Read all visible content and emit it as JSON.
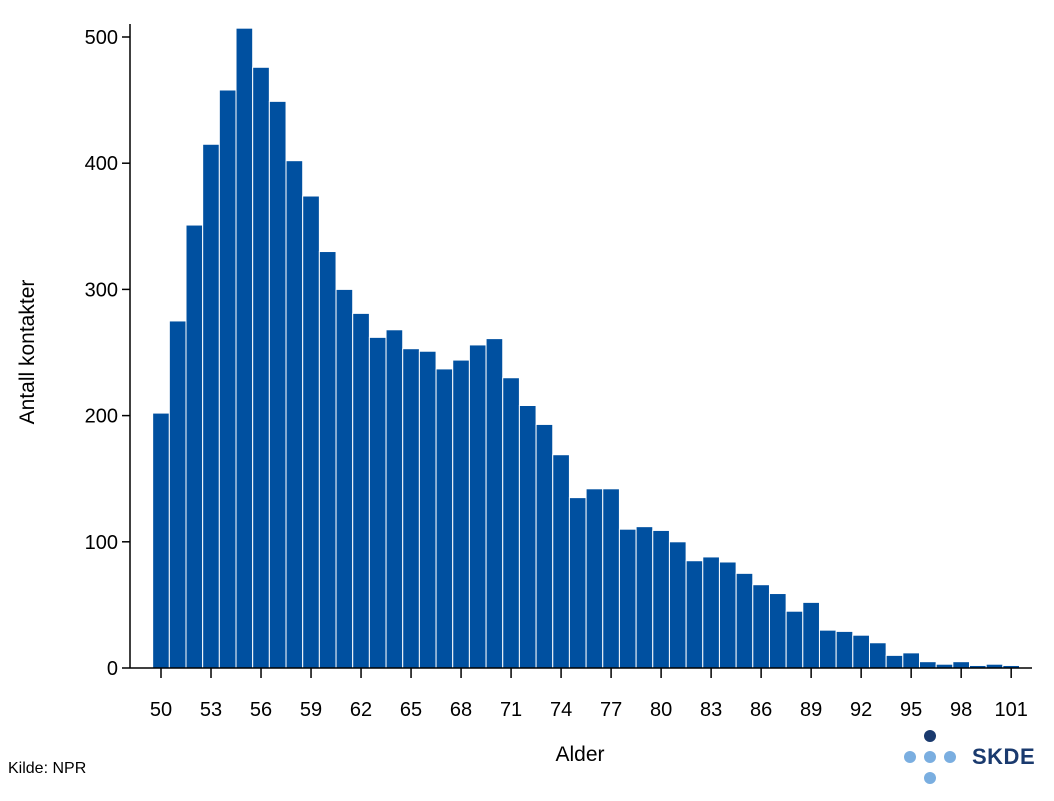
{
  "chart_data": {
    "type": "bar",
    "title": "",
    "xlabel": "Alder",
    "ylabel": "Antall kontakter",
    "ylim": [
      0,
      500
    ],
    "yticks": [
      0,
      100,
      200,
      300,
      400,
      500
    ],
    "xticks": [
      50,
      53,
      56,
      59,
      62,
      65,
      68,
      71,
      74,
      77,
      80,
      83,
      86,
      89,
      92,
      95,
      98,
      101
    ],
    "grid": false,
    "bar_color": "#0050A0",
    "x": [
      50,
      51,
      52,
      53,
      54,
      55,
      56,
      57,
      58,
      59,
      60,
      61,
      62,
      63,
      64,
      65,
      66,
      67,
      68,
      69,
      70,
      71,
      72,
      73,
      74,
      75,
      76,
      77,
      78,
      79,
      80,
      81,
      82,
      83,
      84,
      85,
      86,
      87,
      88,
      89,
      90,
      91,
      92,
      93,
      94,
      95,
      96,
      97,
      98,
      99,
      100,
      101
    ],
    "values": [
      202,
      275,
      351,
      415,
      458,
      507,
      476,
      449,
      402,
      374,
      330,
      300,
      281,
      262,
      268,
      253,
      251,
      237,
      244,
      256,
      261,
      230,
      208,
      193,
      169,
      135,
      142,
      142,
      110,
      112,
      109,
      100,
      85,
      88,
      84,
      75,
      66,
      59,
      45,
      52,
      30,
      29,
      26,
      20,
      10,
      12,
      5,
      3,
      5,
      2,
      3,
      2
    ]
  },
  "source_label": "Kilde: NPR",
  "logo": {
    "text": "SKDE",
    "text_color": "#1a3a6e",
    "dot_dark": "#1a3a6e",
    "dot_light": "#7aaee0"
  }
}
